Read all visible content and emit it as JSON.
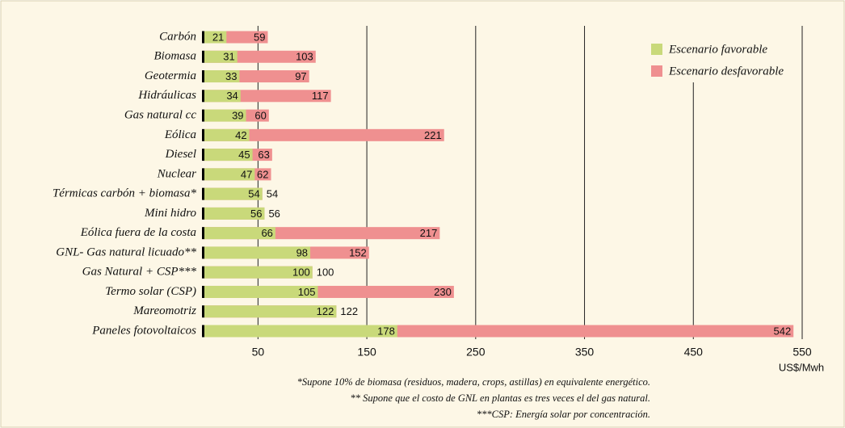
{
  "chart_data": {
    "type": "bar",
    "categories": [
      "Carbón",
      "Biomasa",
      "Geotermia",
      "Hidráulicas",
      "Gas natural cc",
      "Eólica",
      "Diesel",
      "Nuclear",
      "Térmicas carbón + biomasa*",
      "Mini hidro",
      "Eólica fuera de la costa",
      "GNL- Gas natural licuado**",
      "Gas Natural + CSP***",
      "Termo solar (CSP)",
      "Mareomotriz",
      "Paneles fotovoltaicos"
    ],
    "series": [
      {
        "name": "Escenario favorable",
        "color": "#c9d97a",
        "values": [
          21,
          31,
          33,
          34,
          39,
          42,
          45,
          47,
          54,
          56,
          66,
          98,
          100,
          105,
          122,
          178
        ]
      },
      {
        "name": "Escenario desfavorable",
        "color": "#ef9090",
        "values": [
          59,
          103,
          97,
          117,
          60,
          221,
          63,
          62,
          54,
          56,
          217,
          152,
          100,
          230,
          122,
          542
        ]
      }
    ],
    "xlim": [
      0,
      550
    ],
    "xticks": [
      50,
      150,
      250,
      350,
      450,
      550
    ],
    "grid": true,
    "unit_label": "US$/Mwh",
    "footnotes": [
      "*Supone 10% de biomasa (residuos, madera, crops, astillas) en equivalente energético.",
      "** Supone que el costo de GNL en plantas es tres veces el del gas natural.",
      "***CSP: Energía solar por concentración."
    ]
  }
}
